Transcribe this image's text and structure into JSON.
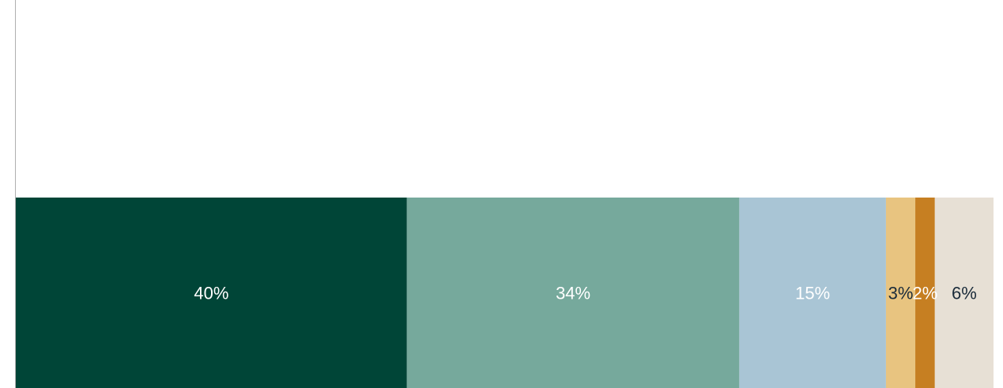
{
  "chart_data": {
    "type": "bar",
    "orientation": "horizontal-stacked",
    "title": "",
    "xlabel": "",
    "ylabel": "",
    "xlim": [
      0,
      100
    ],
    "grid": false,
    "legend": "none",
    "segments": [
      {
        "value": 40,
        "label": "40%",
        "color": "#004537",
        "label_color": "#ffffff"
      },
      {
        "value": 34,
        "label": "34%",
        "color": "#76a99c",
        "label_color": "#ffffff"
      },
      {
        "value": 15,
        "label": "15%",
        "color": "#a9c5d5",
        "label_color": "#ffffff"
      },
      {
        "value": 3,
        "label": "3%",
        "color": "#e8c480",
        "label_color": "#1a2b3a"
      },
      {
        "value": 2,
        "label": "2%",
        "color": "#c67f22",
        "label_color": "#ffffff"
      },
      {
        "value": 6,
        "label": "6%",
        "color": "#e7e0d5",
        "label_color": "#1a2b3a"
      }
    ]
  }
}
